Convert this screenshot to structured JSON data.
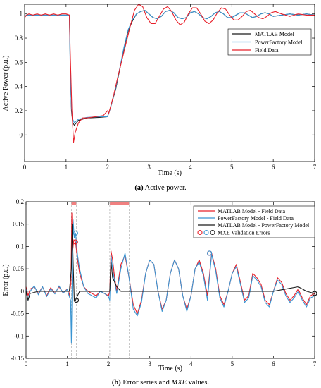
{
  "figure": {
    "caption_a": {
      "tag": "(a)",
      "text": " Active power."
    },
    "caption_b": {
      "tag": "(b)",
      "text": " Error series and ",
      "italic": "MXE",
      "text_end": " values."
    }
  },
  "colors": {
    "matlab": "#1a1a1a",
    "powerfactory": "#3a95d2",
    "field": "#e8202a",
    "window_band": "#f08080",
    "window_line": "#b0b0b0"
  },
  "chart_data": [
    {
      "type": "line",
      "id": "a",
      "xlabel": "Time (s)",
      "ylabel": "Active Power (p.u.)",
      "xlim": [
        0,
        7
      ],
      "ylim": [
        -0.22,
        1.08
      ],
      "xticks": [
        0,
        1,
        2,
        3,
        4,
        5,
        6,
        7
      ],
      "yticks": [
        0,
        0.2,
        0.4,
        0.6,
        0.8,
        1
      ],
      "legend_position": "right",
      "series": [
        {
          "name": "MATLAB Model",
          "color_key": "matlab",
          "x": [
            0,
            0.05,
            0.2,
            0.5,
            0.8,
            1.0,
            1.08,
            1.1,
            1.13,
            1.16,
            1.2,
            1.3,
            1.5,
            1.8,
            2.0,
            2.05,
            2.1,
            2.2,
            2.3,
            2.4,
            2.5,
            2.6,
            2.7,
            2.8,
            2.9,
            3.0,
            3.1,
            3.2,
            3.3,
            3.4,
            3.5,
            3.6,
            3.7,
            3.8,
            3.9,
            4.0,
            4.1,
            4.2,
            4.3,
            4.4,
            4.5,
            4.6,
            4.7,
            4.8,
            4.9,
            5.0,
            5.1,
            5.2,
            5.3,
            5.4,
            5.5,
            5.6,
            5.7,
            5.8,
            5.9,
            6.0,
            6.2,
            6.4,
            6.6,
            6.8,
            7.0
          ],
          "y": [
            0.98,
            0.99,
            0.99,
            0.99,
            0.99,
            0.99,
            0.99,
            0.6,
            0.2,
            0.1,
            0.08,
            0.12,
            0.14,
            0.145,
            0.15,
            0.2,
            0.26,
            0.38,
            0.55,
            0.72,
            0.86,
            0.94,
            1.0,
            1.02,
            1.03,
            1.0,
            0.97,
            0.96,
            0.98,
            1.02,
            1.03,
            1.01,
            0.97,
            0.96,
            0.97,
            1.01,
            1.02,
            1.0,
            0.97,
            0.96,
            0.98,
            1.01,
            1.02,
            1.0,
            0.97,
            0.97,
            0.99,
            1.01,
            1.01,
            0.99,
            0.97,
            0.98,
            1.0,
            1.01,
            1.0,
            0.98,
            0.99,
            1.0,
            0.99,
            1.0,
            0.99
          ]
        },
        {
          "name": "PowerFactory Model",
          "color_key": "powerfactory",
          "x": [
            0,
            0.05,
            0.2,
            0.5,
            0.8,
            1.0,
            1.08,
            1.1,
            1.13,
            1.16,
            1.2,
            1.3,
            1.5,
            1.8,
            2.0,
            2.05,
            2.1,
            2.2,
            2.3,
            2.4,
            2.5,
            2.6,
            2.7,
            2.8,
            2.9,
            3.0,
            3.1,
            3.2,
            3.3,
            3.4,
            3.5,
            3.6,
            3.7,
            3.8,
            3.9,
            4.0,
            4.1,
            4.2,
            4.3,
            4.4,
            4.5,
            4.6,
            4.7,
            4.8,
            4.9,
            5.0,
            5.1,
            5.2,
            5.3,
            5.4,
            5.5,
            5.6,
            5.7,
            5.8,
            5.9,
            6.0,
            6.2,
            6.4,
            6.6,
            6.8,
            7.0
          ],
          "y": [
            0.98,
            0.99,
            0.99,
            0.99,
            0.99,
            0.99,
            0.99,
            0.55,
            0.22,
            0.13,
            0.1,
            0.13,
            0.145,
            0.15,
            0.15,
            0.2,
            0.26,
            0.39,
            0.56,
            0.73,
            0.87,
            0.95,
            1.0,
            1.02,
            1.03,
            1.0,
            0.97,
            0.96,
            0.98,
            1.02,
            1.03,
            1.01,
            0.97,
            0.96,
            0.97,
            1.01,
            1.02,
            1.0,
            0.97,
            0.96,
            0.98,
            1.01,
            1.02,
            1.0,
            0.97,
            0.97,
            0.99,
            1.01,
            1.01,
            0.99,
            0.97,
            0.98,
            1.0,
            1.01,
            1.0,
            0.98,
            0.99,
            1.0,
            0.99,
            1.0,
            0.99
          ]
        },
        {
          "name": "Field Data",
          "color_key": "field",
          "x": [
            0,
            0.05,
            0.1,
            0.2,
            0.3,
            0.4,
            0.5,
            0.6,
            0.7,
            0.8,
            0.9,
            1.0,
            1.08,
            1.1,
            1.14,
            1.18,
            1.22,
            1.3,
            1.4,
            1.5,
            1.7,
            1.9,
            2.0,
            2.03,
            2.08,
            2.15,
            2.25,
            2.35,
            2.45,
            2.55,
            2.65,
            2.75,
            2.85,
            2.95,
            3.05,
            3.15,
            3.25,
            3.35,
            3.45,
            3.55,
            3.65,
            3.75,
            3.85,
            3.95,
            4.05,
            4.15,
            4.25,
            4.35,
            4.45,
            4.55,
            4.65,
            4.75,
            4.85,
            4.95,
            5.05,
            5.15,
            5.25,
            5.35,
            5.45,
            5.55,
            5.65,
            5.75,
            5.85,
            5.95,
            6.05,
            6.2,
            6.4,
            6.6,
            6.8,
            7.0
          ],
          "y": [
            0.97,
            0.99,
            1.0,
            0.99,
            1.0,
            0.99,
            1.0,
            0.99,
            1.0,
            0.99,
            1.0,
            1.0,
            0.99,
            0.7,
            0.2,
            -0.06,
            0.02,
            0.1,
            0.14,
            0.14,
            0.15,
            0.16,
            0.2,
            0.18,
            0.24,
            0.33,
            0.48,
            0.62,
            0.76,
            0.9,
            1.03,
            1.08,
            1.06,
            0.97,
            0.92,
            0.92,
            0.98,
            1.04,
            1.06,
            1.02,
            0.95,
            0.91,
            0.93,
            1.0,
            1.05,
            1.05,
            1.0,
            0.94,
            0.92,
            0.95,
            1.01,
            1.05,
            1.04,
            0.99,
            0.95,
            0.95,
            0.98,
            1.02,
            1.03,
            1.0,
            0.97,
            0.96,
            0.98,
            1.01,
            1.02,
            1.0,
            0.98,
            1.0,
            0.99,
            0.99
          ]
        }
      ]
    },
    {
      "type": "line",
      "id": "b",
      "xlabel": "Time (s)",
      "ylabel": "Error (p.u.)",
      "xlim": [
        0,
        7
      ],
      "ylim": [
        -0.15,
        0.2
      ],
      "xticks": [
        0,
        1,
        2,
        3,
        4,
        5,
        6,
        7
      ],
      "yticks": [
        -0.15,
        -0.1,
        -0.05,
        0,
        0.05,
        0.1,
        0.15,
        0.2
      ],
      "legend_position": "top-right",
      "validation_windows": [
        [
          1.1,
          1.22
        ],
        [
          2.03,
          2.5
        ]
      ],
      "window_lines": [
        1.1,
        1.22,
        2.03,
        2.5
      ],
      "series": [
        {
          "name": "MATLAB Model - Field Data",
          "color_key": "field",
          "x": [
            0,
            0.05,
            0.1,
            0.2,
            0.3,
            0.4,
            0.5,
            0.6,
            0.7,
            0.8,
            0.9,
            1.0,
            1.05,
            1.09,
            1.11,
            1.13,
            1.16,
            1.2,
            1.25,
            1.3,
            1.4,
            1.5,
            1.6,
            1.7,
            1.8,
            1.9,
            2.0,
            2.03,
            2.06,
            2.1,
            2.15,
            2.2,
            2.3,
            2.4,
            2.5,
            2.6,
            2.7,
            2.8,
            2.9,
            3.0,
            3.1,
            3.2,
            3.3,
            3.4,
            3.5,
            3.6,
            3.7,
            3.8,
            3.9,
            4.0,
            4.1,
            4.2,
            4.3,
            4.4,
            4.5,
            4.6,
            4.7,
            4.8,
            4.9,
            5.0,
            5.1,
            5.2,
            5.3,
            5.4,
            5.5,
            5.6,
            5.7,
            5.8,
            5.9,
            6.0,
            6.1,
            6.2,
            6.3,
            6.4,
            6.5,
            6.6,
            6.7,
            6.8,
            6.9,
            7.0
          ],
          "y": [
            0.01,
            -0.01,
            0.005,
            0.01,
            -0.005,
            0.01,
            -0.01,
            0.008,
            -0.005,
            0.01,
            -0.004,
            0.005,
            -0.01,
            0.02,
            0.175,
            0.09,
            0.115,
            0.11,
            0.07,
            0.04,
            0.01,
            0.0,
            -0.005,
            -0.01,
            0.0,
            -0.005,
            -0.01,
            0.0,
            0.09,
            0.07,
            0.03,
            0.0,
            0.06,
            0.08,
            0.03,
            -0.03,
            -0.05,
            -0.02,
            0.04,
            0.07,
            0.06,
            0.0,
            -0.04,
            -0.02,
            0.04,
            0.07,
            0.05,
            -0.01,
            -0.04,
            -0.01,
            0.05,
            0.07,
            0.04,
            -0.01,
            0.085,
            0.05,
            -0.01,
            -0.03,
            0.0,
            0.04,
            0.06,
            0.02,
            -0.02,
            -0.01,
            0.04,
            0.03,
            0.015,
            -0.02,
            -0.03,
            0.0,
            0.03,
            0.02,
            -0.005,
            -0.02,
            -0.01,
            0.005,
            -0.015,
            -0.03,
            -0.01,
            -0.005
          ]
        },
        {
          "name": "PowerFactory Model - Field Data",
          "color_key": "powerfactory",
          "x": [
            0,
            0.05,
            0.1,
            0.2,
            0.3,
            0.4,
            0.5,
            0.6,
            0.7,
            0.8,
            0.9,
            1.0,
            1.05,
            1.08,
            1.1,
            1.12,
            1.14,
            1.17,
            1.2,
            1.25,
            1.3,
            1.4,
            1.5,
            1.6,
            1.7,
            1.8,
            1.9,
            2.0,
            2.03,
            2.06,
            2.1,
            2.15,
            2.2,
            2.3,
            2.4,
            2.5,
            2.6,
            2.7,
            2.8,
            2.9,
            3.0,
            3.1,
            3.2,
            3.3,
            3.4,
            3.5,
            3.6,
            3.7,
            3.8,
            3.9,
            4.0,
            4.1,
            4.2,
            4.3,
            4.4,
            4.5,
            4.6,
            4.7,
            4.8,
            4.9,
            5.0,
            5.1,
            5.2,
            5.3,
            5.4,
            5.5,
            5.6,
            5.7,
            5.8,
            5.9,
            6.0,
            6.1,
            6.2,
            6.3,
            6.4,
            6.5,
            6.6,
            6.7,
            6.8,
            6.9,
            7.0
          ],
          "y": [
            0.005,
            -0.02,
            0.0,
            0.012,
            -0.008,
            0.01,
            -0.012,
            0.006,
            -0.006,
            0.012,
            -0.004,
            0.004,
            -0.012,
            -0.02,
            -0.115,
            0.03,
            0.16,
            0.12,
            0.13,
            0.08,
            0.05,
            0.01,
            -0.005,
            -0.01,
            -0.015,
            0.0,
            -0.005,
            -0.012,
            -0.02,
            0.08,
            0.05,
            0.02,
            -0.005,
            0.05,
            0.085,
            0.03,
            -0.04,
            -0.055,
            -0.025,
            0.04,
            0.07,
            0.06,
            0.0,
            -0.045,
            -0.02,
            0.04,
            0.07,
            0.05,
            -0.01,
            -0.045,
            -0.01,
            0.05,
            0.065,
            0.035,
            -0.02,
            0.082,
            0.045,
            -0.015,
            -0.035,
            0.0,
            0.04,
            0.055,
            0.015,
            -0.025,
            -0.015,
            0.035,
            0.025,
            0.01,
            -0.025,
            -0.035,
            0.0,
            0.025,
            0.015,
            -0.01,
            -0.025,
            -0.015,
            0.0,
            -0.02,
            -0.035,
            -0.015,
            -0.01
          ]
        },
        {
          "name": "MATLAB Model - PowerFactory Model",
          "color_key": "matlab",
          "x": [
            0,
            0.05,
            0.1,
            0.3,
            0.5,
            0.7,
            0.9,
            1.05,
            1.1,
            1.12,
            1.14,
            1.17,
            1.2,
            1.25,
            1.3,
            1.4,
            1.6,
            1.8,
            2.0,
            2.03,
            2.06,
            2.1,
            2.2,
            2.3,
            2.4,
            2.6,
            2.8,
            3.0,
            3.5,
            4.0,
            4.5,
            5.0,
            5.5,
            6.0,
            6.3,
            6.6,
            6.8,
            7.0
          ],
          "y": [
            0.0,
            -0.02,
            -0.005,
            0.0,
            0.0,
            0.0,
            0.0,
            0.0,
            0.05,
            0.15,
            0.07,
            -0.02,
            -0.02,
            -0.01,
            0.0,
            0.0,
            0.0,
            0.0,
            0.0,
            0.0,
            0.065,
            0.03,
            0.01,
            0.0,
            0.0,
            0.0,
            0.0,
            0.0,
            0.0,
            0.0,
            0.0,
            0.0,
            0.0,
            0.0,
            0.005,
            0.01,
            0.0,
            -0.005
          ]
        }
      ],
      "mxe_markers": [
        {
          "x": 1.2,
          "y": 0.11,
          "color_key": "field"
        },
        {
          "x": 1.2,
          "y": 0.13,
          "color_key": "powerfactory"
        },
        {
          "x": 1.22,
          "y": -0.02,
          "color_key": "matlab"
        },
        {
          "x": 4.45,
          "y": 0.085,
          "color_key": "field"
        },
        {
          "x": 4.45,
          "y": 0.085,
          "color_key": "powerfactory"
        },
        {
          "x": 7.0,
          "y": -0.005,
          "color_key": "matlab"
        }
      ],
      "legend_marker_label": "MXE Validation Errors"
    }
  ]
}
